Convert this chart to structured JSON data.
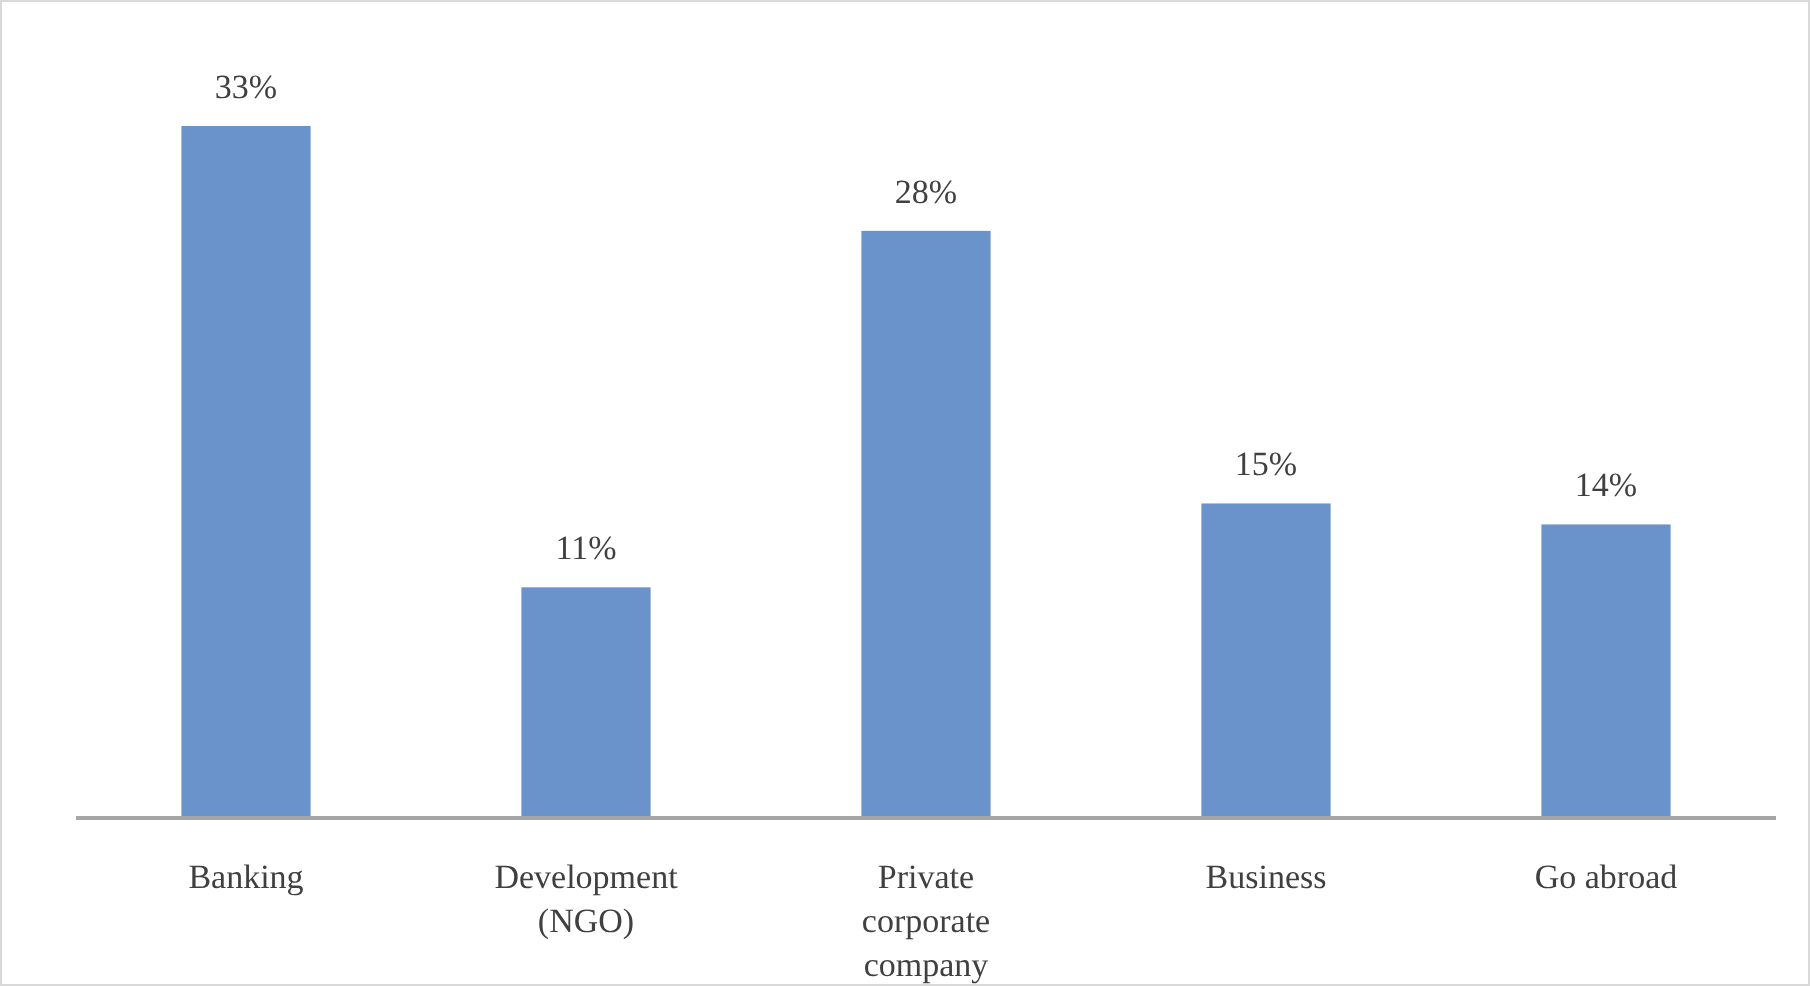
{
  "chart_data": {
    "type": "bar",
    "categories": [
      "Banking",
      "Development (NGO)",
      "Private corporate company",
      "Business",
      "Go abroad"
    ],
    "values": [
      33,
      11,
      28,
      15,
      14
    ],
    "value_labels": [
      "33%",
      "11%",
      "28%",
      "15%",
      "14%"
    ],
    "color": "#6a93cc"
  }
}
